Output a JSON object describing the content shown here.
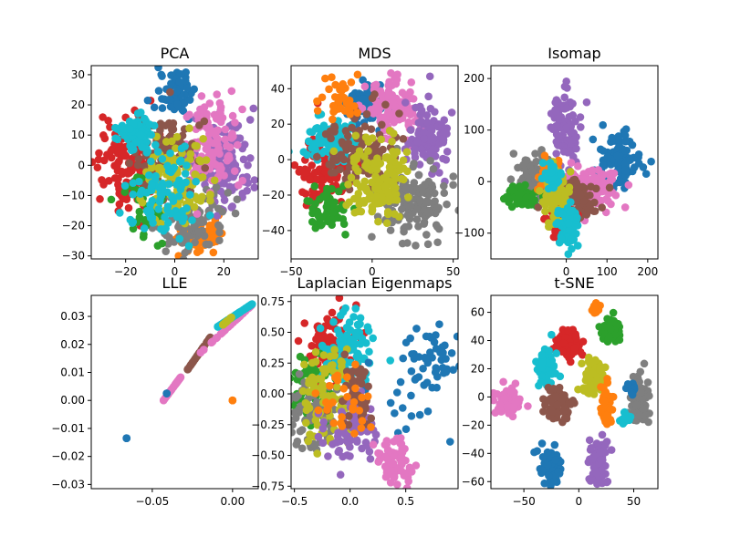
{
  "colors": {
    "blue": "#1f77b4",
    "orange": "#ff7f0e",
    "green": "#2ca02c",
    "red": "#d62728",
    "purple": "#9467bd",
    "brown": "#8c564b",
    "pink": "#e377c2",
    "gray": "#7f7f7f",
    "olive": "#bcbd22",
    "cyan": "#17becf"
  },
  "chart_data": [
    {
      "type": "scatter",
      "title": "PCA",
      "xlim": [
        -34,
        34
      ],
      "ylim": [
        -31,
        33
      ],
      "xticks": [
        -20,
        0,
        20
      ],
      "xtick_labels": [
        "−20",
        "0",
        "20"
      ],
      "yticks": [
        -30,
        -20,
        -10,
        0,
        10,
        20,
        30
      ],
      "ytick_labels": [
        "−30",
        "−20",
        "−10",
        "0",
        "10",
        "20",
        "30"
      ],
      "clusters": [
        {
          "color": "red",
          "cx": -20,
          "cy": 0,
          "sx": 6,
          "sy": 8,
          "n": 120
        },
        {
          "color": "blue",
          "cx": 0,
          "cy": 25,
          "sx": 4,
          "sy": 4,
          "n": 60
        },
        {
          "color": "orange",
          "cx": 12,
          "cy": -23,
          "sx": 6,
          "sy": 3,
          "n": 60
        },
        {
          "color": "purple",
          "cx": 20,
          "cy": 0,
          "sx": 6,
          "sy": 8,
          "n": 120
        },
        {
          "color": "gray",
          "cx": 5,
          "cy": -18,
          "sx": 8,
          "sy": 5,
          "n": 90
        },
        {
          "color": "pink",
          "cx": 15,
          "cy": 8,
          "sx": 5,
          "sy": 8,
          "n": 110
        },
        {
          "color": "brown",
          "cx": -5,
          "cy": 5,
          "sx": 7,
          "sy": 7,
          "n": 100
        },
        {
          "color": "green",
          "cx": -12,
          "cy": -15,
          "sx": 5,
          "sy": 5,
          "n": 40
        },
        {
          "color": "olive",
          "cx": 0,
          "cy": -5,
          "sx": 6,
          "sy": 7,
          "n": 120
        },
        {
          "color": "cyan",
          "cx": -15,
          "cy": 10,
          "sx": 4,
          "sy": 3,
          "n": 80
        },
        {
          "color": "cyan",
          "cx": -5,
          "cy": -10,
          "sx": 7,
          "sy": 7,
          "n": 90
        }
      ]
    },
    {
      "type": "scatter",
      "title": "MDS",
      "xlim": [
        -50,
        53
      ],
      "ylim": [
        -56,
        53
      ],
      "xticks": [
        -50,
        0,
        50
      ],
      "xtick_labels": [
        "−50",
        "0",
        "50"
      ],
      "yticks": [
        -40,
        -20,
        0,
        20,
        40
      ],
      "ytick_labels": [
        "−40",
        "−20",
        "0",
        "20",
        "40"
      ],
      "clusters": [
        {
          "color": "blue",
          "cx": -5,
          "cy": 30,
          "sx": 6,
          "sy": 5,
          "n": 80
        },
        {
          "color": "pink",
          "cx": 12,
          "cy": 28,
          "sx": 8,
          "sy": 8,
          "n": 120
        },
        {
          "color": "red",
          "cx": -30,
          "cy": -5,
          "sx": 8,
          "sy": 10,
          "n": 110
        },
        {
          "color": "cyan",
          "cx": -25,
          "cy": 12,
          "sx": 8,
          "sy": 6,
          "n": 120
        },
        {
          "color": "purple",
          "cx": 35,
          "cy": 12,
          "sx": 7,
          "sy": 10,
          "n": 100
        },
        {
          "color": "gray",
          "cx": 25,
          "cy": -25,
          "sx": 12,
          "sy": 10,
          "n": 140
        },
        {
          "color": "green",
          "cx": -28,
          "cy": -28,
          "sx": 6,
          "sy": 6,
          "n": 60
        },
        {
          "color": "brown",
          "cx": -8,
          "cy": 5,
          "sx": 12,
          "sy": 12,
          "n": 100
        },
        {
          "color": "olive",
          "cx": 5,
          "cy": -12,
          "sx": 10,
          "sy": 12,
          "n": 140
        },
        {
          "color": "orange",
          "cx": -20,
          "cy": 35,
          "sx": 6,
          "sy": 6,
          "n": 40
        }
      ]
    },
    {
      "type": "scatter",
      "title": "Isomap",
      "xlim": [
        -185,
        225
      ],
      "ylim": [
        -150,
        225
      ],
      "xticks": [
        0,
        100,
        200
      ],
      "xtick_labels": [
        "0",
        "100",
        "200"
      ],
      "yticks": [
        -100,
        0,
        100,
        200
      ],
      "ytick_labels": [
        "−100",
        "0",
        "100",
        "200"
      ],
      "clusters": [
        {
          "color": "purple",
          "cx": -5,
          "cy": 110,
          "sx": 18,
          "sy": 40,
          "n": 90
        },
        {
          "color": "blue",
          "cx": 130,
          "cy": 40,
          "sx": 25,
          "sy": 25,
          "n": 100
        },
        {
          "color": "gray",
          "cx": -75,
          "cy": 5,
          "sx": 22,
          "sy": 22,
          "n": 110
        },
        {
          "color": "green",
          "cx": -110,
          "cy": -30,
          "sx": 22,
          "sy": 10,
          "n": 50
        },
        {
          "color": "pink",
          "cx": 60,
          "cy": -10,
          "sx": 30,
          "sy": 20,
          "n": 140
        },
        {
          "color": "brown",
          "cx": 20,
          "cy": -40,
          "sx": 30,
          "sy": 25,
          "n": 110
        },
        {
          "color": "red",
          "cx": -15,
          "cy": -65,
          "sx": 15,
          "sy": 20,
          "n": 70
        },
        {
          "color": "orange",
          "cx": -40,
          "cy": 20,
          "sx": 12,
          "sy": 15,
          "n": 40
        },
        {
          "color": "olive",
          "cx": -25,
          "cy": -20,
          "sx": 15,
          "sy": 30,
          "n": 90
        },
        {
          "color": "cyan",
          "cx": 5,
          "cy": -85,
          "sx": 12,
          "sy": 20,
          "n": 90
        },
        {
          "color": "cyan",
          "cx": -35,
          "cy": 10,
          "sx": 10,
          "sy": 10,
          "n": 40
        }
      ]
    },
    {
      "type": "scatter",
      "title": "LLE",
      "xlim": [
        -0.088,
        0.016
      ],
      "ylim": [
        -0.0315,
        0.0375
      ],
      "xticks": [
        -0.05,
        0.0
      ],
      "xtick_labels": [
        "−0.05",
        "0.00"
      ],
      "yticks": [
        -0.03,
        -0.02,
        -0.01,
        0.0,
        0.01,
        0.02,
        0.03
      ],
      "ytick_labels": [
        "−0.03",
        "−0.02",
        "−0.01",
        "0.00",
        "0.01",
        "0.02",
        "0.03"
      ],
      "points": [
        {
          "color": "blue",
          "x": -0.066,
          "y": -0.0135
        },
        {
          "color": "orange",
          "x": 0.0,
          "y": 0.0
        },
        {
          "color": "blue",
          "x": -0.041,
          "y": 0.0025
        }
      ],
      "lines": [
        {
          "color": "pink",
          "x0": -0.043,
          "y0": 0.0,
          "x1": -0.032,
          "y1": 0.0085,
          "n": 40
        },
        {
          "color": "brown",
          "x0": -0.028,
          "y0": 0.011,
          "x1": -0.012,
          "y1": 0.024,
          "n": 40
        },
        {
          "color": "pink",
          "x0": -0.02,
          "y0": 0.017,
          "x1": 0.012,
          "y1": 0.034,
          "n": 40
        },
        {
          "color": "cyan",
          "x0": -0.01,
          "y0": 0.026,
          "x1": 0.0125,
          "y1": 0.0345,
          "n": 80
        },
        {
          "color": "olive",
          "x0": -0.006,
          "y0": 0.027,
          "x1": 0.0,
          "y1": 0.03,
          "n": 20
        }
      ]
    },
    {
      "type": "scatter",
      "title": "Laplacian Eigenmaps",
      "xlim": [
        -0.53,
        0.97
      ],
      "ylim": [
        -0.77,
        0.8
      ],
      "xticks": [
        -0.5,
        0.0,
        0.5
      ],
      "xtick_labels": [
        "−0.5",
        "0.0",
        "0.5"
      ],
      "yticks": [
        -0.75,
        -0.5,
        -0.25,
        0.0,
        0.25,
        0.5,
        0.75
      ],
      "ytick_labels": [
        "−0.75",
        "−0.50",
        "−0.25",
        "0.00",
        "0.25",
        "0.50",
        "0.75"
      ],
      "clusters": [
        {
          "color": "red",
          "cx": -0.2,
          "cy": 0.4,
          "sx": 0.12,
          "sy": 0.15,
          "n": 80
        },
        {
          "color": "cyan",
          "cx": -0.03,
          "cy": 0.35,
          "sx": 0.1,
          "sy": 0.15,
          "n": 90
        },
        {
          "color": "green",
          "cx": -0.35,
          "cy": 0.0,
          "sx": 0.1,
          "sy": 0.15,
          "n": 60
        },
        {
          "color": "gray",
          "cx": -0.3,
          "cy": -0.15,
          "sx": 0.15,
          "sy": 0.15,
          "n": 80
        },
        {
          "color": "olive",
          "cx": -0.2,
          "cy": 0.0,
          "sx": 0.12,
          "sy": 0.2,
          "n": 100
        },
        {
          "color": "blue",
          "cx": 0.72,
          "cy": 0.3,
          "sx": 0.1,
          "sy": 0.12,
          "n": 45
        },
        {
          "color": "blue",
          "cx": 0.45,
          "cy": 0.0,
          "sx": 0.2,
          "sy": 0.2,
          "n": 20
        },
        {
          "color": "purple",
          "cx": 0.0,
          "cy": -0.3,
          "sx": 0.12,
          "sy": 0.12,
          "n": 80
        },
        {
          "color": "pink",
          "cx": 0.4,
          "cy": -0.55,
          "sx": 0.07,
          "sy": 0.1,
          "n": 70
        },
        {
          "color": "brown",
          "cx": 0.05,
          "cy": 0.0,
          "sx": 0.1,
          "sy": 0.15,
          "n": 40
        },
        {
          "color": "orange",
          "cx": -0.05,
          "cy": -0.1,
          "sx": 0.15,
          "sy": 0.15,
          "n": 30
        }
      ]
    },
    {
      "type": "scatter",
      "title": "t-SNE",
      "xlim": [
        -80,
        72
      ],
      "ylim": [
        -65,
        72
      ],
      "xticks": [
        -50,
        0,
        50
      ],
      "xtick_labels": [
        "−50",
        "0",
        "50"
      ],
      "yticks": [
        -60,
        -40,
        -20,
        0,
        20,
        40,
        60
      ],
      "ytick_labels": [
        "−60",
        "−40",
        "−20",
        "0",
        "20",
        "40",
        "60"
      ],
      "clusters": [
        {
          "color": "orange",
          "cx": 15,
          "cy": 63,
          "sx": 2,
          "sy": 2,
          "n": 25
        },
        {
          "color": "green",
          "cx": 30,
          "cy": 48,
          "sx": 5,
          "sy": 4,
          "n": 60
        },
        {
          "color": "red",
          "cx": -10,
          "cy": 38,
          "sx": 6,
          "sy": 5,
          "n": 70
        },
        {
          "color": "cyan",
          "cx": -30,
          "cy": 20,
          "sx": 4,
          "sy": 6,
          "n": 60
        },
        {
          "color": "olive",
          "cx": 15,
          "cy": 12,
          "sx": 6,
          "sy": 6,
          "n": 70
        },
        {
          "color": "pink",
          "cx": -65,
          "cy": -2,
          "sx": 6,
          "sy": 5,
          "n": 70
        },
        {
          "color": "brown",
          "cx": -20,
          "cy": -5,
          "sx": 6,
          "sy": 6,
          "n": 60
        },
        {
          "color": "gray",
          "cx": 55,
          "cy": -2,
          "sx": 4,
          "sy": 10,
          "n": 70
        },
        {
          "color": "orange",
          "cx": 25,
          "cy": -5,
          "sx": 3,
          "sy": 10,
          "n": 40
        },
        {
          "color": "cyan",
          "cx": 42,
          "cy": -14,
          "sx": 2,
          "sy": 3,
          "n": 15
        },
        {
          "color": "blue",
          "cx": -25,
          "cy": -50,
          "sx": 5,
          "sy": 6,
          "n": 70
        },
        {
          "color": "purple",
          "cx": 18,
          "cy": -45,
          "sx": 4,
          "sy": 8,
          "n": 70
        },
        {
          "color": "blue",
          "cx": 48,
          "cy": 6,
          "sx": 2,
          "sy": 3,
          "n": 10
        }
      ]
    }
  ]
}
